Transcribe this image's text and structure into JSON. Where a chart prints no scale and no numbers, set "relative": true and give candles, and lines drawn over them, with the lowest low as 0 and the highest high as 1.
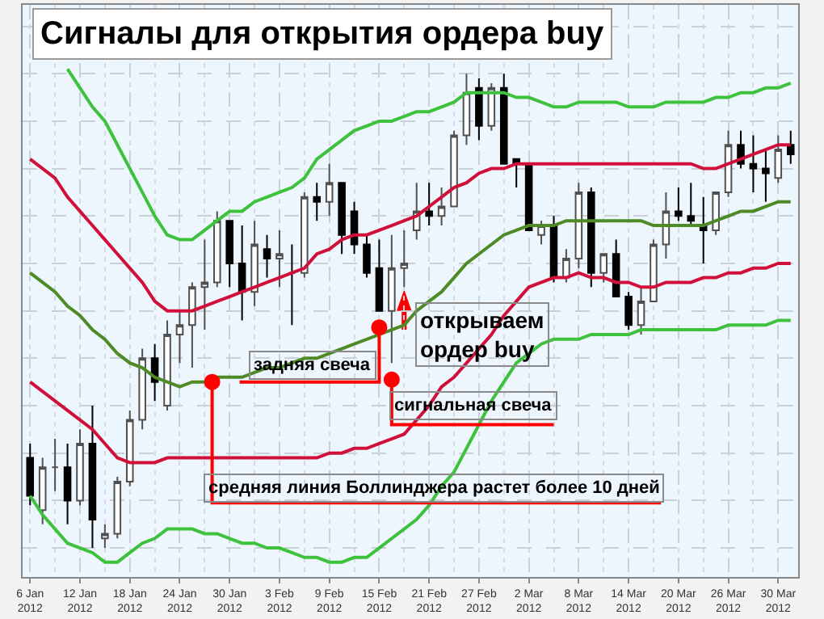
{
  "chart_data": {
    "type": "candlestick",
    "title": "Сигналы для открытия ордера buy",
    "relative": true,
    "grid": true,
    "tick_labels": "x",
    "categories": [
      "6 Jan 2012",
      null,
      null,
      null,
      "12 Jan 2012",
      null,
      null,
      null,
      "18 Jan 2012",
      null,
      null,
      null,
      "24 Jan 2012",
      null,
      null,
      null,
      "30 Jan 2012",
      null,
      null,
      null,
      "3 Feb 2012",
      null,
      null,
      null,
      "9 Feb 2012",
      null,
      null,
      null,
      "15 Feb 2012",
      null,
      null,
      null,
      "21 Feb 2012",
      null,
      null,
      null,
      "27 Feb 2012",
      null,
      null,
      null,
      "2 Mar 2012",
      null,
      null,
      null,
      "8 Mar 2012",
      null,
      null,
      null,
      "14 Mar 2012",
      null,
      null,
      null,
      "20 Mar 2012",
      null,
      null,
      null,
      "26 Mar 2012",
      null,
      null,
      null,
      "30 Mar 2012",
      null
    ],
    "ohlc": [
      [
        0.19,
        0.22,
        0.09,
        0.11
      ],
      [
        0.08,
        0.19,
        0.05,
        0.17
      ],
      [
        0.17,
        0.23,
        0.12,
        0.17
      ],
      [
        0.17,
        0.22,
        0.05,
        0.1
      ],
      [
        0.1,
        0.25,
        0.09,
        0.22
      ],
      [
        0.22,
        0.3,
        0,
        0.06
      ],
      [
        0.02,
        0.05,
        0,
        0.03
      ],
      [
        0.03,
        0.15,
        0.02,
        0.14
      ],
      [
        0.14,
        0.29,
        0.13,
        0.27
      ],
      [
        0.27,
        0.42,
        0.25,
        0.4
      ],
      [
        0.4,
        0.43,
        0.31,
        0.35
      ],
      [
        0.3,
        0.48,
        0.29,
        0.45
      ],
      [
        0.45,
        0.5,
        0.39,
        0.47
      ],
      [
        0.47,
        0.56,
        0.38,
        0.55
      ],
      [
        0.55,
        0.65,
        0.46,
        0.56
      ],
      [
        0.56,
        0.71,
        0.55,
        0.69
      ],
      [
        0.69,
        0.69,
        0.55,
        0.6
      ],
      [
        0.6,
        0.68,
        0.48,
        0.54
      ],
      [
        0.54,
        0.69,
        0.51,
        0.64
      ],
      [
        0.63,
        0.66,
        0.57,
        0.61
      ],
      [
        0.61,
        0.67,
        0.55,
        0.62
      ],
      [
        0.58,
        0.64,
        0.47,
        0.58
      ],
      [
        0.58,
        0.75,
        0.57,
        0.74
      ],
      [
        0.74,
        0.77,
        0.69,
        0.73
      ],
      [
        0.73,
        0.81,
        0.7,
        0.77
      ],
      [
        0.77,
        0.77,
        0.62,
        0.66
      ],
      [
        0.71,
        0.73,
        0.62,
        0.64
      ],
      [
        0.64,
        0.66,
        0.57,
        0.58
      ],
      [
        0.59,
        0.65,
        0.5,
        0.5
      ],
      [
        0.5,
        0.66,
        0.39,
        0.59
      ],
      [
        0.59,
        0.67,
        0.55,
        0.6
      ],
      [
        0.67,
        0.77,
        0.65,
        0.71
      ],
      [
        0.71,
        0.77,
        0.68,
        0.7
      ],
      [
        0.7,
        0.76,
        0.68,
        0.72
      ],
      [
        0.72,
        0.88,
        0.72,
        0.87
      ],
      [
        0.87,
        1,
        0.85,
        0.96
      ],
      [
        0.97,
        0.99,
        0.86,
        0.89
      ],
      [
        0.89,
        0.98,
        0.88,
        0.97
      ],
      [
        0.97,
        1,
        0.81,
        0.81
      ],
      [
        0.82,
        0.82,
        0.76,
        0.81
      ],
      [
        0.81,
        0.81,
        0.67,
        0.67
      ],
      [
        0.66,
        0.69,
        0.64,
        0.68
      ],
      [
        0.68,
        0.7,
        0.56,
        0.57
      ],
      [
        0.57,
        0.63,
        0.56,
        0.61
      ],
      [
        0.61,
        0.77,
        0.59,
        0.75
      ],
      [
        0.75,
        0.76,
        0.55,
        0.58
      ],
      [
        0.58,
        0.62,
        0.56,
        0.62
      ],
      [
        0.62,
        0.65,
        0.53,
        0.53
      ],
      [
        0.53,
        0.54,
        0.46,
        0.47
      ],
      [
        0.47,
        0.55,
        0.45,
        0.52
      ],
      [
        0.52,
        0.65,
        0.52,
        0.64
      ],
      [
        0.64,
        0.75,
        0.61,
        0.71
      ],
      [
        0.71,
        0.76,
        0.69,
        0.7
      ],
      [
        0.7,
        0.77,
        0.68,
        0.69
      ],
      [
        0.68,
        0.74,
        0.6,
        0.67
      ],
      [
        0.67,
        0.75,
        0.66,
        0.75
      ],
      [
        0.75,
        0.88,
        0.74,
        0.85
      ],
      [
        0.85,
        0.88,
        0.8,
        0.81
      ],
      [
        0.81,
        0.87,
        0.75,
        0.8
      ],
      [
        0.8,
        0.84,
        0.73,
        0.79
      ],
      [
        0.78,
        0.87,
        0.77,
        0.84
      ],
      [
        0.85,
        0.88,
        0.81,
        0.83
      ]
    ],
    "series": [
      {
        "type": "line",
        "color": "#3ec23e",
        "values": [
          null,
          null,
          null,
          1.01,
          0.97,
          0.93,
          0.9,
          0.85,
          0.8,
          0.75,
          0.7,
          0.66,
          0.65,
          0.65,
          0.67,
          0.69,
          0.71,
          0.71,
          0.73,
          0.74,
          0.75,
          0.76,
          0.78,
          0.82,
          0.84,
          0.86,
          0.88,
          0.89,
          0.9,
          0.9,
          0.91,
          0.92,
          0.92,
          0.93,
          0.94,
          0.96,
          0.96,
          0.96,
          0.96,
          0.95,
          0.95,
          0.94,
          0.93,
          0.93,
          0.94,
          0.94,
          0.94,
          0.94,
          0.93,
          0.93,
          0.93,
          0.94,
          0.94,
          0.94,
          0.94,
          0.95,
          0.95,
          0.96,
          0.96,
          0.97,
          0.97,
          0.98
        ]
      },
      {
        "type": "line",
        "color": "#d0103a",
        "values": [
          0.82,
          0.8,
          0.78,
          0.74,
          0.71,
          0.68,
          0.65,
          0.62,
          0.59,
          0.56,
          0.52,
          0.5,
          0.5,
          0.5,
          0.51,
          0.52,
          0.53,
          0.54,
          0.55,
          0.56,
          0.57,
          0.58,
          0.59,
          0.62,
          0.63,
          0.65,
          0.66,
          0.66,
          0.67,
          0.68,
          0.69,
          0.7,
          0.72,
          0.74,
          0.76,
          0.77,
          0.79,
          0.8,
          0.8,
          0.81,
          0.81,
          0.81,
          0.81,
          0.81,
          0.81,
          0.81,
          0.81,
          0.81,
          0.81,
          0.81,
          0.81,
          0.81,
          0.81,
          0.81,
          0.8,
          0.8,
          0.81,
          0.82,
          0.83,
          0.84,
          0.85,
          0.85
        ]
      },
      {
        "type": "line",
        "color": "#4e8a26",
        "values": [
          0.58,
          0.56,
          0.54,
          0.51,
          0.49,
          0.46,
          0.44,
          0.41,
          0.39,
          0.38,
          0.36,
          0.35,
          0.34,
          0.35,
          0.35,
          0.36,
          0.36,
          0.36,
          0.37,
          0.38,
          0.38,
          0.39,
          0.4,
          0.4,
          0.41,
          0.42,
          0.43,
          0.44,
          0.45,
          0.46,
          0.47,
          0.5,
          0.52,
          0.54,
          0.57,
          0.6,
          0.62,
          0.64,
          0.66,
          0.67,
          0.68,
          0.68,
          0.68,
          0.69,
          0.69,
          0.69,
          0.69,
          0.69,
          0.69,
          0.69,
          0.68,
          0.68,
          0.68,
          0.68,
          0.68,
          0.69,
          0.7,
          0.71,
          0.71,
          0.72,
          0.73,
          0.73
        ]
      },
      {
        "type": "line",
        "color": "#d0103a",
        "values": [
          0.35,
          0.33,
          0.31,
          0.29,
          0.27,
          0.25,
          0.22,
          0.19,
          0.18,
          0.18,
          0.18,
          0.19,
          0.19,
          0.19,
          0.19,
          0.19,
          0.19,
          0.19,
          0.19,
          0.19,
          0.19,
          0.19,
          0.19,
          0.19,
          0.2,
          0.2,
          0.21,
          0.21,
          0.22,
          0.23,
          0.24,
          0.27,
          0.3,
          0.34,
          0.36,
          0.39,
          0.42,
          0.45,
          0.49,
          0.52,
          0.55,
          0.56,
          0.57,
          0.57,
          0.58,
          0.57,
          0.57,
          0.56,
          0.56,
          0.55,
          0.55,
          0.56,
          0.56,
          0.56,
          0.57,
          0.57,
          0.58,
          0.58,
          0.59,
          0.59,
          0.6,
          0.6
        ]
      },
      {
        "type": "line",
        "color": "#3ec23e",
        "values": [
          0.11,
          0.07,
          0.04,
          0.01,
          0,
          -0.01,
          -0.03,
          -0.03,
          -0.01,
          0.01,
          0.02,
          0.04,
          0.04,
          0.04,
          0.03,
          0.03,
          0.02,
          0.01,
          0.01,
          0,
          0,
          -0.01,
          -0.02,
          -0.02,
          -0.03,
          -0.03,
          -0.02,
          -0.02,
          0,
          0.02,
          0.04,
          0.06,
          0.09,
          0.13,
          0.16,
          0.21,
          0.26,
          0.31,
          0.35,
          0.39,
          0.41,
          0.43,
          0.44,
          0.44,
          0.44,
          0.45,
          0.45,
          0.45,
          0.45,
          0.46,
          0.46,
          0.46,
          0.46,
          0.46,
          0.46,
          0.46,
          0.47,
          0.47,
          0.47,
          0.47,
          0.48,
          0.48
        ]
      }
    ],
    "annotations": [
      "открываем\nордер buy",
      {
        "text": "задняя свеча",
        "x": "15 Feb 2012",
        "y": 0.5
      },
      {
        "text": "сигнальная свеча",
        "y": 0.39
      },
      "средняя линия Боллинджера растет более 10 дней"
    ]
  }
}
